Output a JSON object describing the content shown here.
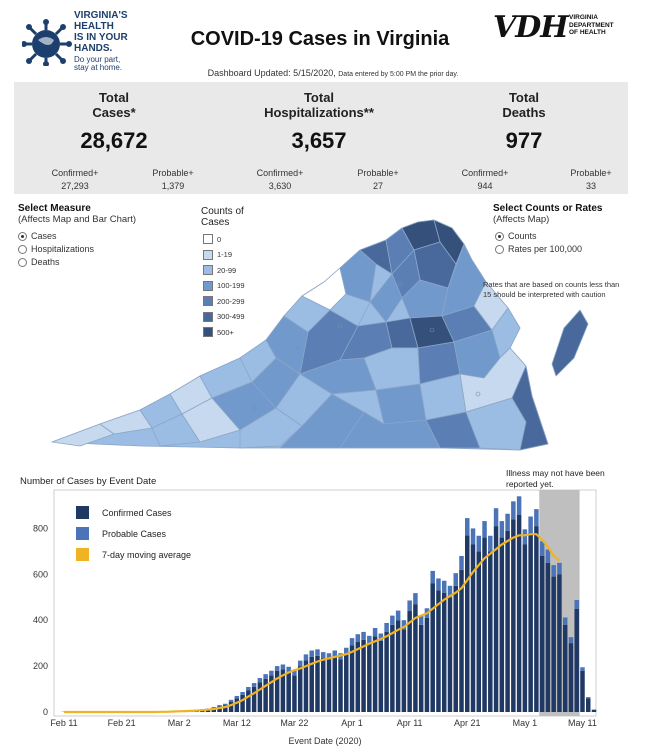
{
  "header": {
    "logo_lines": [
      "VIRGINIA'S",
      "HEALTH",
      "IS IN YOUR",
      "HANDS."
    ],
    "logo_sub": [
      "Do your part,",
      "stay at home."
    ],
    "title": "COVID-19 Cases in Virginia",
    "vdh_letters": "VDH",
    "vdh_sub": [
      "VIRGINIA",
      "DEPARTMENT",
      "OF HEALTH"
    ],
    "updated": "Dashboard Updated: 5/15/2020,",
    "updated_small": "Data entered by 5:00 PM the prior day."
  },
  "stats": {
    "cases": {
      "title1": "Total",
      "title2": "Cases*",
      "value": "28,672",
      "confirmed_label": "Confirmed+",
      "confirmed": "27,293",
      "probable_label": "Probable+",
      "probable": "1,379"
    },
    "hosp": {
      "title1": "Total",
      "title2": "Hospitalizations**",
      "value": "3,657",
      "confirmed_label": "Confirmed+",
      "confirmed": "3,630",
      "probable_label": "Probable+",
      "probable": "27"
    },
    "deaths": {
      "title1": "Total",
      "title2": "Deaths",
      "value": "977",
      "confirmed_label": "Confirmed+",
      "confirmed": "944",
      "probable_label": "Probable+",
      "probable": "33"
    }
  },
  "measure": {
    "title": "Select Measure",
    "subtitle": "(Affects Map and Bar Chart)",
    "options": [
      "Cases",
      "Hospitalizations",
      "Deaths"
    ],
    "selected": "Cases"
  },
  "counts_rates": {
    "title": "Select Counts or Rates",
    "subtitle": "(Affects Map)",
    "options": [
      "Counts",
      "Rates per 100,000"
    ],
    "selected": "Counts"
  },
  "map_legend": {
    "title1": "Counts of",
    "title2": "Cases",
    "items": [
      {
        "label": "0",
        "color": "#ffffff"
      },
      {
        "label": "1-19",
        "color": "#c6d9ee"
      },
      {
        "label": "20-99",
        "color": "#9bbde3"
      },
      {
        "label": "100-199",
        "color": "#7299cc"
      },
      {
        "label": "200-299",
        "color": "#5b7fb4"
      },
      {
        "label": "300-499",
        "color": "#49699c"
      },
      {
        "label": "500+",
        "color": "#35507a"
      }
    ],
    "note": "Rates that are based on counts less than 15 should be interpreted with caution"
  },
  "chart_data": {
    "type": "bar",
    "title": "Number of Cases by Event Date",
    "xlabel": "Event Date (2020)",
    "ylabel": "",
    "ylim": [
      0,
      950
    ],
    "yticks": [
      0,
      200,
      400,
      600,
      800
    ],
    "x_tick_labels": [
      "Feb 11",
      "Feb 21",
      "Mar 2",
      "Mar 12",
      "Mar 22",
      "Apr 1",
      "Apr 11",
      "Apr 21",
      "May 1",
      "May 11"
    ],
    "x_tick_days": [
      0,
      10,
      20,
      30,
      40,
      50,
      60,
      70,
      80,
      90
    ],
    "start_day_label": "Feb 11",
    "note": "Illness may not have been reported yet.",
    "shaded_days": [
      82.5,
      89.5
    ],
    "legend": [
      {
        "name": "Confirmed Cases",
        "color": "#1f3864"
      },
      {
        "name": "Probable Cases",
        "color": "#4a73b8"
      },
      {
        "name": "7-day moving average",
        "color": "#f0b323"
      }
    ],
    "series": [
      {
        "name": "Confirmed Cases",
        "values": [
          1,
          0,
          0,
          0,
          0,
          1,
          0,
          0,
          0,
          1,
          0,
          0,
          0,
          1,
          0,
          1,
          1,
          2,
          2,
          3,
          4,
          6,
          7,
          8,
          10,
          12,
          18,
          25,
          30,
          45,
          60,
          75,
          95,
          110,
          130,
          145,
          160,
          180,
          185,
          175,
          160,
          200,
          225,
          240,
          245,
          235,
          230,
          240,
          230,
          250,
          290,
          305,
          315,
          300,
          330,
          310,
          350,
          380,
          400,
          360,
          440,
          470,
          380,
          410,
          560,
          530,
          520,
          500,
          550,
          620,
          770,
          730,
          700,
          760,
          700,
          810,
          760,
          790,
          840,
          860,
          730,
          780,
          810,
          680,
          650,
          590,
          600,
          380,
          300,
          450,
          180,
          60,
          10
        ]
      },
      {
        "name": "Probable Cases",
        "values": [
          0,
          0,
          0,
          0,
          0,
          0,
          0,
          0,
          0,
          0,
          0,
          0,
          0,
          0,
          0,
          0,
          0,
          0,
          0,
          0,
          0,
          1,
          1,
          1,
          2,
          3,
          4,
          5,
          6,
          8,
          10,
          12,
          14,
          16,
          18,
          20,
          20,
          20,
          22,
          22,
          20,
          24,
          26,
          28,
          28,
          26,
          26,
          28,
          26,
          30,
          32,
          34,
          34,
          32,
          36,
          32,
          38,
          40,
          42,
          40,
          46,
          48,
          40,
          42,
          55,
          52,
          52,
          50,
          55,
          60,
          75,
          70,
          68,
          72,
          68,
          78,
          72,
          74,
          78,
          80,
          66,
          72,
          74,
          64,
          58,
          50,
          50,
          32,
          26,
          38,
          15,
          5,
          1
        ]
      },
      {
        "name": "7-day moving average",
        "values": [
          0,
          0,
          0,
          0,
          0,
          0,
          0,
          0,
          0,
          0,
          0,
          0,
          0,
          0,
          0,
          0,
          0,
          1,
          1,
          2,
          3,
          4,
          5,
          6,
          8,
          10,
          13,
          17,
          22,
          30,
          40,
          52,
          67,
          82,
          98,
          114,
          130,
          146,
          160,
          172,
          182,
          190,
          200,
          210,
          220,
          228,
          234,
          240,
          246,
          252,
          262,
          274,
          286,
          298,
          308,
          318,
          330,
          344,
          358,
          370,
          390,
          410,
          420,
          430,
          450,
          470,
          490,
          505,
          520,
          540,
          575,
          610,
          640,
          670,
          690,
          710,
          730,
          745,
          760,
          770,
          770,
          775,
          775,
          750,
          720,
          680,
          660,
          null,
          null,
          null,
          null,
          null,
          null
        ]
      }
    ]
  }
}
